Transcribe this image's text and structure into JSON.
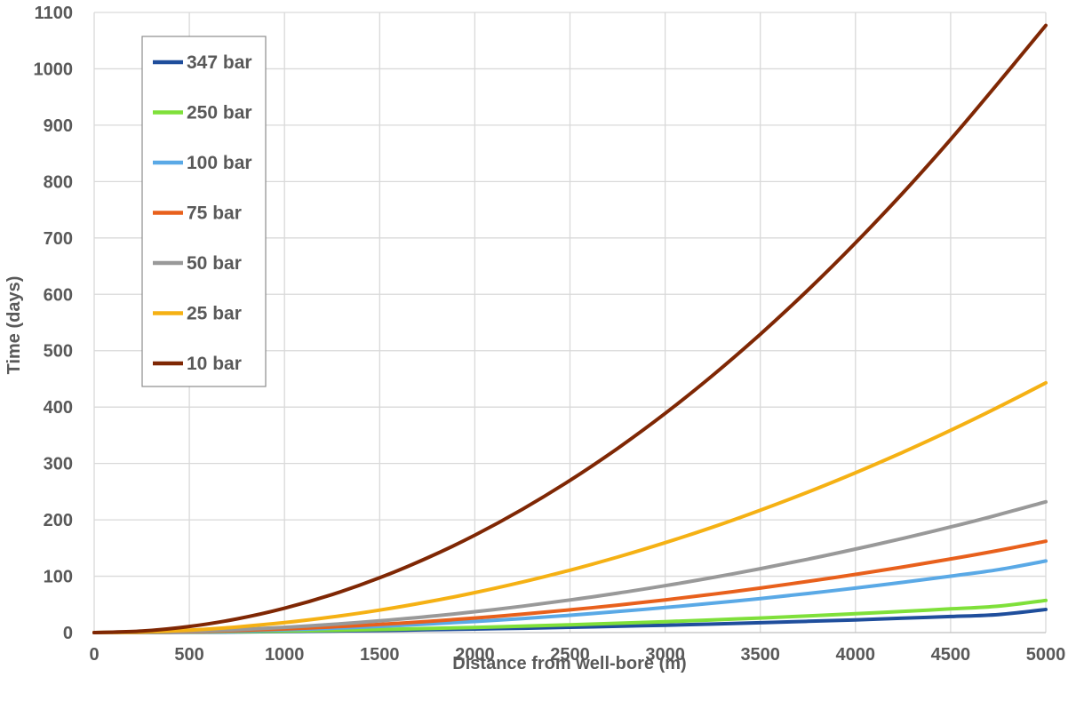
{
  "chart_data": {
    "type": "line",
    "xlabel": "Distance from well-bore (m)",
    "ylabel": "Time (days)",
    "xlim": [
      0,
      5000
    ],
    "ylim": [
      0,
      1100
    ],
    "x_ticks": [
      "0",
      "500",
      "1000",
      "1500",
      "2000",
      "2500",
      "3000",
      "3500",
      "4000",
      "4500",
      "5000"
    ],
    "y_ticks": [
      "0",
      "100",
      "200",
      "300",
      "400",
      "500",
      "600",
      "700",
      "800",
      "900",
      "1000",
      "1100"
    ],
    "grid": true,
    "legend_position": "top-left",
    "x": [
      0,
      250,
      500,
      750,
      1000,
      1250,
      1500,
      1750,
      2000,
      2250,
      2500,
      2750,
      3000,
      3250,
      3500,
      3750,
      4000,
      4250,
      4500,
      4750,
      5000
    ],
    "series": [
      {
        "name": "347 bar",
        "color": "#1f4e9c",
        "values": [
          0,
          0.2,
          0.6,
          1.1,
          1.9,
          2.8,
          3.8,
          5.0,
          6.3,
          7.8,
          9.4,
          11.2,
          13.1,
          15.2,
          17.5,
          20.0,
          22.6,
          25.5,
          28.6,
          32.0,
          41
        ]
      },
      {
        "name": "250 bar",
        "color": "#7fe03a",
        "values": [
          0,
          0.3,
          0.9,
          1.7,
          2.7,
          4.0,
          5.5,
          7.2,
          9.2,
          11.4,
          13.8,
          16.5,
          19.4,
          22.5,
          25.9,
          29.5,
          33.4,
          37.6,
          42.1,
          47.0,
          57
        ]
      },
      {
        "name": "100 bar",
        "color": "#5aa9e6",
        "values": [
          0,
          0.3,
          1.2,
          2.7,
          4.9,
          7.7,
          11.1,
          15.1,
          19.7,
          24.9,
          30.8,
          37.3,
          44.4,
          52.1,
          60.4,
          69.4,
          79.0,
          89.2,
          100.1,
          111.5,
          127
        ]
      },
      {
        "name": "75 bar",
        "color": "#e8601c",
        "values": [
          0,
          0.4,
          1.6,
          3.6,
          6.4,
          10.1,
          14.5,
          19.7,
          25.8,
          32.6,
          40.3,
          48.7,
          58.0,
          68.1,
          79.0,
          90.7,
          103.2,
          116.5,
          130.6,
          145.6,
          162
        ]
      },
      {
        "name": "50 bar",
        "color": "#999999",
        "values": [
          0,
          0.6,
          2.3,
          5.2,
          9.3,
          14.5,
          20.8,
          28.3,
          37.0,
          46.8,
          57.8,
          69.9,
          83.2,
          97.7,
          113.3,
          130.1,
          148.1,
          167.2,
          187.4,
          208.9,
          232
        ]
      },
      {
        "name": "25 bar",
        "color": "#f5b114",
        "values": [
          0,
          1.1,
          4.4,
          10.0,
          17.7,
          27.7,
          39.9,
          54.3,
          70.9,
          89.7,
          110.7,
          134.0,
          159.5,
          187.1,
          217.1,
          249.2,
          283.5,
          320.1,
          358.8,
          399.8,
          443
        ]
      },
      {
        "name": "10 bar",
        "color": "#7f2704",
        "values": [
          0,
          2.7,
          10.8,
          24.3,
          43.2,
          67.5,
          97.2,
          132.3,
          172.8,
          218.7,
          270.0,
          326.7,
          388.8,
          456.3,
          529.2,
          607.5,
          691.2,
          780.3,
          874.8,
          974.7,
          1077
        ]
      }
    ]
  }
}
